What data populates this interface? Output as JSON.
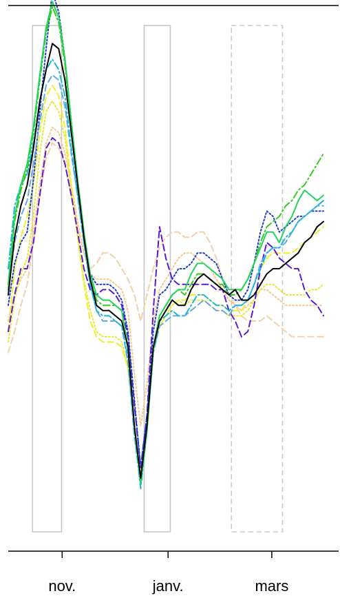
{
  "chart_data": {
    "type": "line",
    "x_ticks": [
      {
        "label": "nov.",
        "pos": 0.171
      },
      {
        "label": "janv.",
        "pos": 0.507
      },
      {
        "label": "mars",
        "pos": 0.836
      }
    ],
    "ylim": [
      0,
      100
    ],
    "grid": false,
    "legend": "none",
    "highlight_boxes": [
      {
        "x_start": 0.077,
        "x_end": 0.169,
        "style": "solid",
        "color": "#c8c8c8"
      },
      {
        "x_start": 0.431,
        "x_end": 0.514,
        "style": "solid",
        "color": "#c8c8c8"
      },
      {
        "x_start": 0.708,
        "x_end": 0.87,
        "style": "dashed",
        "color": "#c8c8c8"
      }
    ],
    "x": [
      0.0,
      0.02,
      0.04,
      0.06,
      0.08,
      0.1,
      0.12,
      0.14,
      0.16,
      0.18,
      0.2,
      0.22,
      0.24,
      0.26,
      0.28,
      0.3,
      0.32,
      0.34,
      0.36,
      0.38,
      0.4,
      0.42,
      0.44,
      0.46,
      0.48,
      0.5,
      0.52,
      0.54,
      0.56,
      0.58,
      0.6,
      0.62,
      0.64,
      0.66,
      0.68,
      0.7,
      0.72,
      0.74,
      0.76,
      0.78,
      0.8,
      0.82,
      0.84,
      0.86,
      0.88,
      0.9,
      0.92,
      0.94,
      0.96,
      0.98,
      1.0
    ],
    "series": [
      {
        "color": "#000000",
        "dash": "solid",
        "width": 2,
        "values": [
          45,
          56,
          62,
          66,
          73,
          82,
          88,
          93,
          92,
          86,
          76,
          66,
          56,
          48,
          43,
          42,
          42,
          41,
          40,
          35,
          20,
          10,
          20,
          35,
          40,
          42,
          44,
          43,
          43,
          46,
          48,
          49,
          48,
          47,
          46,
          45,
          46,
          44,
          44,
          45,
          47,
          49,
          50,
          50,
          51,
          52,
          53,
          55,
          56,
          58,
          59
        ]
      },
      {
        "color": "#22d35a",
        "dash": "solid",
        "width": 2,
        "values": [
          47,
          60,
          66,
          70,
          77,
          87,
          96,
          101,
          98,
          90,
          78,
          67,
          57,
          49,
          45,
          44,
          44,
          43,
          42,
          35,
          20,
          9,
          19,
          35,
          41,
          43,
          45,
          46,
          46,
          49,
          51,
          51,
          50,
          49,
          48,
          46,
          46,
          46,
          48,
          51,
          54,
          57,
          57,
          55,
          58,
          60,
          63,
          65,
          64,
          63,
          64
        ]
      },
      {
        "color": "#38c820",
        "dash": "dashdot",
        "width": 2,
        "values": [
          46,
          59,
          65,
          69,
          76,
          86,
          95,
          100,
          97,
          89,
          77,
          66,
          56,
          48,
          44,
          43,
          43,
          43,
          42,
          35,
          20,
          9,
          20,
          35,
          41,
          43,
          45,
          46,
          45,
          47,
          49,
          49,
          48,
          47,
          47,
          45,
          45,
          46,
          48,
          51,
          55,
          58,
          59,
          60,
          62,
          63,
          65,
          66,
          68,
          70,
          72
        ]
      },
      {
        "color": "#19b8d6",
        "dash": "dashdot",
        "width": 2,
        "values": [
          50,
          62,
          66,
          68,
          74,
          82,
          88,
          90,
          88,
          83,
          73,
          64,
          55,
          47,
          42,
          41,
          41,
          40,
          39,
          33,
          19,
          8,
          19,
          34,
          40,
          41,
          42,
          41,
          41,
          43,
          45,
          45,
          44,
          43,
          43,
          42,
          43,
          43,
          44,
          47,
          50,
          53,
          54,
          54,
          56,
          57,
          59,
          60,
          61,
          62,
          63
        ]
      },
      {
        "color": "#63a9e8",
        "dash": "dashed",
        "width": 2,
        "values": [
          46,
          55,
          60,
          63,
          70,
          78,
          85,
          87,
          86,
          81,
          72,
          64,
          55,
          47,
          42,
          40,
          40,
          40,
          39,
          32,
          18,
          9,
          19,
          34,
          39,
          40,
          41,
          41,
          41,
          42,
          43,
          44,
          43,
          42,
          42,
          41,
          43,
          43,
          44,
          47,
          51,
          53,
          54,
          54,
          55,
          57,
          59,
          60,
          61,
          62,
          62
        ]
      },
      {
        "color": "#1e3ec8",
        "dash": "dotted",
        "width": 2,
        "values": [
          43,
          51,
          55,
          57,
          67,
          80,
          92,
          103,
          99,
          90,
          78,
          66,
          56,
          49,
          47,
          47,
          47,
          46,
          44,
          38,
          25,
          12,
          22,
          38,
          45,
          46,
          48,
          50,
          50,
          51,
          53,
          53,
          52,
          51,
          48,
          45,
          44,
          44,
          46,
          51,
          57,
          61,
          60,
          57,
          58,
          59,
          60,
          60,
          61,
          61,
          61
        ]
      },
      {
        "color": "#5a1ad4",
        "dash": "dashed",
        "width": 2,
        "values": [
          38,
          45,
          50,
          50,
          55,
          64,
          73,
          75,
          74,
          70,
          64,
          57,
          50,
          46,
          45,
          46,
          46,
          45,
          43,
          37,
          24,
          12,
          22,
          42,
          58,
          52,
          48,
          47,
          47,
          47,
          47,
          47,
          47,
          46,
          46,
          42,
          40,
          37,
          38,
          43,
          50,
          55,
          54,
          52,
          51,
          50,
          50,
          46,
          44,
          43,
          41
        ]
      },
      {
        "color": "#f0f02a",
        "dash": "dashed",
        "width": 2,
        "values": [
          38,
          50,
          56,
          60,
          66,
          76,
          83,
          85,
          83,
          77,
          66,
          56,
          47,
          40,
          37,
          36,
          36,
          36,
          35,
          31,
          20,
          10,
          19,
          34,
          39,
          41,
          43,
          44,
          44,
          45,
          45,
          45,
          44,
          43,
          43,
          42,
          42,
          42,
          44,
          47,
          50,
          52,
          53,
          53,
          53,
          53,
          54,
          55,
          56,
          57,
          58
        ]
      },
      {
        "color": "#e8e83a",
        "dash": "dotted",
        "width": 2,
        "values": [
          36,
          44,
          49,
          52,
          60,
          72,
          80,
          82,
          80,
          75,
          65,
          56,
          48,
          42,
          38,
          37,
          37,
          37,
          36,
          31,
          20,
          10,
          19,
          34,
          39,
          41,
          43,
          44,
          43,
          44,
          44,
          44,
          43,
          42,
          42,
          41,
          41,
          41,
          42,
          44,
          46,
          47,
          47,
          46,
          45,
          45,
          45,
          45,
          46,
          46,
          47
        ]
      },
      {
        "color": "#f2d0a8",
        "dash": "dashed",
        "width": 2,
        "values": [
          34,
          38,
          43,
          47,
          55,
          64,
          71,
          74,
          73,
          70,
          64,
          58,
          53,
          50,
          51,
          53,
          53,
          52,
          50,
          48,
          45,
          40,
          45,
          50,
          54,
          56,
          57,
          57,
          56,
          56,
          57,
          57,
          55,
          52,
          48,
          45,
          43,
          41,
          40,
          40,
          40,
          41,
          40,
          39,
          38,
          37,
          37,
          37,
          37,
          37,
          37
        ]
      },
      {
        "color": "#f5c890",
        "dash": "dotted",
        "width": 2,
        "values": [
          40,
          45,
          48,
          50,
          57,
          66,
          74,
          77,
          76,
          72,
          66,
          59,
          53,
          49,
          48,
          48,
          48,
          47,
          46,
          42,
          30,
          20,
          28,
          40,
          46,
          48,
          50,
          52,
          53,
          53,
          52,
          51,
          50,
          48,
          46,
          44,
          43,
          42,
          43,
          44,
          46,
          46,
          45,
          44,
          43,
          43,
          43,
          43,
          43,
          43,
          43
        ]
      }
    ]
  }
}
